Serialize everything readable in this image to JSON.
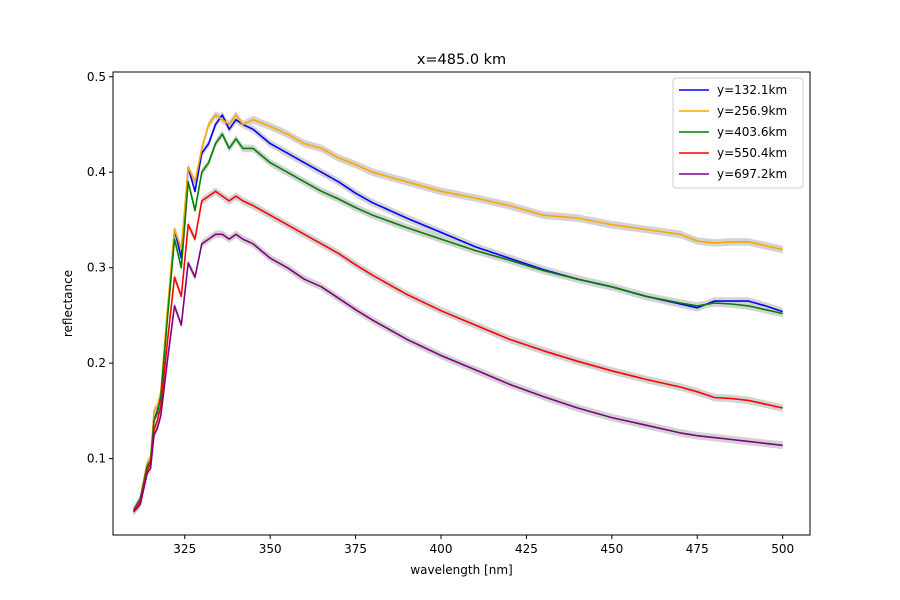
{
  "chart_data": {
    "type": "line",
    "title": "x=485.0 km",
    "xlabel": "wavelength [nm]",
    "ylabel": "reflectance",
    "xlim": [
      304,
      508
    ],
    "ylim": [
      0.02,
      0.505
    ],
    "xticks": [
      325,
      350,
      375,
      400,
      425,
      450,
      475,
      500
    ],
    "yticks": [
      0.1,
      0.2,
      0.3,
      0.4,
      0.5
    ],
    "legend_position": "top-right",
    "grid": false,
    "uncertainty_band_color": "#d3d3d3",
    "series": [
      {
        "name": "y=132.1km",
        "color": "#0000ff",
        "points": [
          [
            310,
            0.046
          ],
          [
            312,
            0.058
          ],
          [
            314,
            0.095
          ],
          [
            315,
            0.1
          ],
          [
            316,
            0.14
          ],
          [
            317,
            0.15
          ],
          [
            318,
            0.165
          ],
          [
            320,
            0.255
          ],
          [
            322,
            0.34
          ],
          [
            324,
            0.31
          ],
          [
            326,
            0.405
          ],
          [
            328,
            0.38
          ],
          [
            330,
            0.42
          ],
          [
            332,
            0.43
          ],
          [
            334,
            0.45
          ],
          [
            336,
            0.46
          ],
          [
            338,
            0.445
          ],
          [
            340,
            0.455
          ],
          [
            342,
            0.45
          ],
          [
            345,
            0.445
          ],
          [
            350,
            0.43
          ],
          [
            355,
            0.42
          ],
          [
            360,
            0.41
          ],
          [
            365,
            0.4
          ],
          [
            370,
            0.39
          ],
          [
            375,
            0.378
          ],
          [
            380,
            0.368
          ],
          [
            390,
            0.352
          ],
          [
            400,
            0.337
          ],
          [
            410,
            0.322
          ],
          [
            420,
            0.31
          ],
          [
            430,
            0.298
          ],
          [
            440,
            0.288
          ],
          [
            450,
            0.28
          ],
          [
            460,
            0.27
          ],
          [
            470,
            0.262
          ],
          [
            475,
            0.258
          ],
          [
            480,
            0.265
          ],
          [
            485,
            0.265
          ],
          [
            490,
            0.265
          ],
          [
            495,
            0.26
          ],
          [
            500,
            0.254
          ]
        ]
      },
      {
        "name": "y=256.9km",
        "color": "#ffa500",
        "points": [
          [
            310,
            0.046
          ],
          [
            312,
            0.058
          ],
          [
            314,
            0.095
          ],
          [
            315,
            0.1
          ],
          [
            316,
            0.15
          ],
          [
            317,
            0.155
          ],
          [
            318,
            0.17
          ],
          [
            320,
            0.26
          ],
          [
            322,
            0.34
          ],
          [
            324,
            0.32
          ],
          [
            326,
            0.405
          ],
          [
            328,
            0.39
          ],
          [
            330,
            0.425
          ],
          [
            332,
            0.45
          ],
          [
            334,
            0.46
          ],
          [
            336,
            0.455
          ],
          [
            338,
            0.45
          ],
          [
            340,
            0.46
          ],
          [
            342,
            0.45
          ],
          [
            345,
            0.455
          ],
          [
            350,
            0.448
          ],
          [
            355,
            0.44
          ],
          [
            360,
            0.43
          ],
          [
            365,
            0.425
          ],
          [
            370,
            0.415
          ],
          [
            375,
            0.408
          ],
          [
            380,
            0.4
          ],
          [
            390,
            0.39
          ],
          [
            400,
            0.38
          ],
          [
            410,
            0.373
          ],
          [
            420,
            0.365
          ],
          [
            430,
            0.355
          ],
          [
            440,
            0.352
          ],
          [
            450,
            0.345
          ],
          [
            460,
            0.34
          ],
          [
            470,
            0.335
          ],
          [
            475,
            0.328
          ],
          [
            480,
            0.326
          ],
          [
            485,
            0.327
          ],
          [
            490,
            0.327
          ],
          [
            495,
            0.323
          ],
          [
            500,
            0.319
          ]
        ]
      },
      {
        "name": "y=403.6km",
        "color": "#008000",
        "points": [
          [
            310,
            0.046
          ],
          [
            312,
            0.058
          ],
          [
            314,
            0.092
          ],
          [
            315,
            0.098
          ],
          [
            316,
            0.14
          ],
          [
            317,
            0.148
          ],
          [
            318,
            0.165
          ],
          [
            320,
            0.25
          ],
          [
            322,
            0.33
          ],
          [
            324,
            0.3
          ],
          [
            326,
            0.39
          ],
          [
            328,
            0.36
          ],
          [
            330,
            0.4
          ],
          [
            332,
            0.41
          ],
          [
            334,
            0.43
          ],
          [
            336,
            0.44
          ],
          [
            338,
            0.425
          ],
          [
            340,
            0.435
          ],
          [
            342,
            0.425
          ],
          [
            345,
            0.425
          ],
          [
            350,
            0.41
          ],
          [
            355,
            0.4
          ],
          [
            360,
            0.39
          ],
          [
            365,
            0.38
          ],
          [
            370,
            0.372
          ],
          [
            375,
            0.363
          ],
          [
            380,
            0.355
          ],
          [
            390,
            0.342
          ],
          [
            400,
            0.33
          ],
          [
            410,
            0.318
          ],
          [
            420,
            0.308
          ],
          [
            430,
            0.297
          ],
          [
            440,
            0.288
          ],
          [
            450,
            0.28
          ],
          [
            460,
            0.27
          ],
          [
            470,
            0.263
          ],
          [
            475,
            0.26
          ],
          [
            480,
            0.263
          ],
          [
            485,
            0.262
          ],
          [
            490,
            0.26
          ],
          [
            495,
            0.256
          ],
          [
            500,
            0.252
          ]
        ]
      },
      {
        "name": "y=550.4km",
        "color": "#ff0000",
        "points": [
          [
            310,
            0.046
          ],
          [
            312,
            0.055
          ],
          [
            314,
            0.088
          ],
          [
            315,
            0.095
          ],
          [
            316,
            0.13
          ],
          [
            317,
            0.14
          ],
          [
            318,
            0.155
          ],
          [
            320,
            0.225
          ],
          [
            322,
            0.29
          ],
          [
            324,
            0.27
          ],
          [
            326,
            0.345
          ],
          [
            328,
            0.33
          ],
          [
            330,
            0.37
          ],
          [
            332,
            0.375
          ],
          [
            334,
            0.38
          ],
          [
            336,
            0.375
          ],
          [
            338,
            0.37
          ],
          [
            340,
            0.375
          ],
          [
            342,
            0.37
          ],
          [
            345,
            0.365
          ],
          [
            350,
            0.355
          ],
          [
            355,
            0.345
          ],
          [
            360,
            0.335
          ],
          [
            365,
            0.325
          ],
          [
            370,
            0.315
          ],
          [
            375,
            0.303
          ],
          [
            380,
            0.292
          ],
          [
            390,
            0.272
          ],
          [
            400,
            0.255
          ],
          [
            410,
            0.24
          ],
          [
            420,
            0.225
          ],
          [
            430,
            0.213
          ],
          [
            440,
            0.202
          ],
          [
            450,
            0.192
          ],
          [
            460,
            0.183
          ],
          [
            470,
            0.175
          ],
          [
            475,
            0.17
          ],
          [
            480,
            0.164
          ],
          [
            485,
            0.163
          ],
          [
            490,
            0.161
          ],
          [
            495,
            0.157
          ],
          [
            500,
            0.153
          ]
        ]
      },
      {
        "name": "y=697.2km",
        "color": "#800080",
        "points": [
          [
            310,
            0.044
          ],
          [
            312,
            0.052
          ],
          [
            314,
            0.085
          ],
          [
            315,
            0.09
          ],
          [
            316,
            0.125
          ],
          [
            317,
            0.132
          ],
          [
            318,
            0.145
          ],
          [
            320,
            0.205
          ],
          [
            322,
            0.26
          ],
          [
            324,
            0.24
          ],
          [
            326,
            0.305
          ],
          [
            328,
            0.29
          ],
          [
            330,
            0.325
          ],
          [
            332,
            0.33
          ],
          [
            334,
            0.335
          ],
          [
            336,
            0.335
          ],
          [
            338,
            0.33
          ],
          [
            340,
            0.335
          ],
          [
            342,
            0.33
          ],
          [
            345,
            0.325
          ],
          [
            350,
            0.31
          ],
          [
            355,
            0.3
          ],
          [
            360,
            0.288
          ],
          [
            365,
            0.28
          ],
          [
            370,
            0.268
          ],
          [
            375,
            0.256
          ],
          [
            380,
            0.245
          ],
          [
            390,
            0.225
          ],
          [
            400,
            0.208
          ],
          [
            410,
            0.193
          ],
          [
            420,
            0.178
          ],
          [
            430,
            0.165
          ],
          [
            440,
            0.153
          ],
          [
            450,
            0.143
          ],
          [
            460,
            0.135
          ],
          [
            470,
            0.127
          ],
          [
            475,
            0.124
          ],
          [
            480,
            0.122
          ],
          [
            485,
            0.12
          ],
          [
            490,
            0.118
          ],
          [
            495,
            0.116
          ],
          [
            500,
            0.114
          ]
        ]
      }
    ]
  }
}
